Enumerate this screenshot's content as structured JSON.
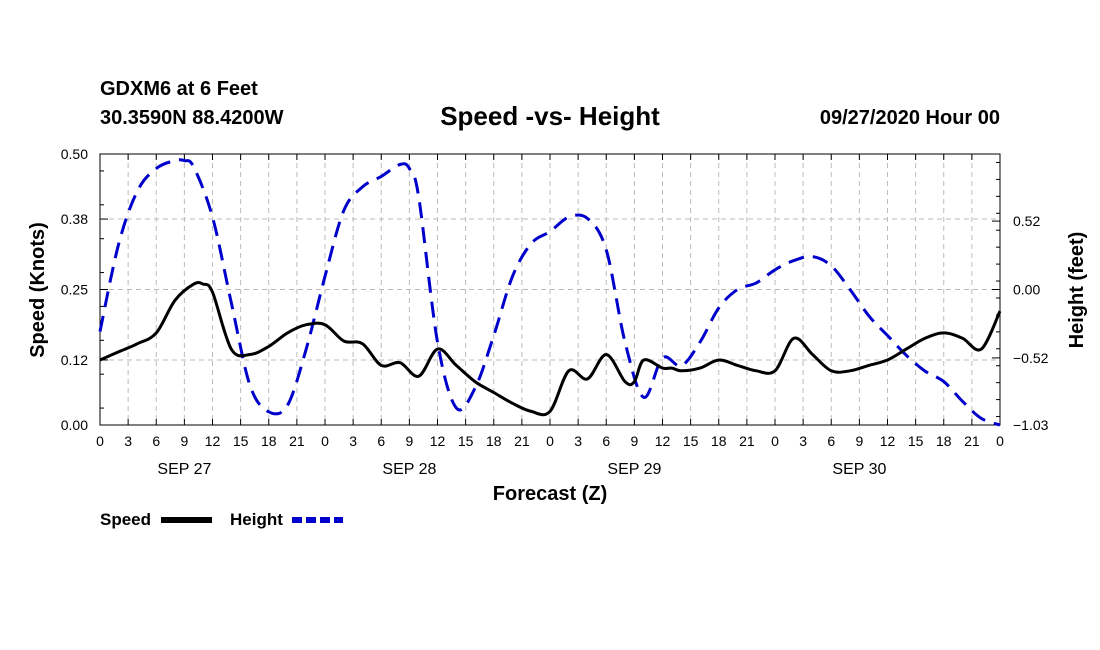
{
  "header": {
    "station": "GDXM6 at 6 Feet",
    "coords": "30.3590N 88.4200W",
    "title": "Speed -vs- Height",
    "date": "09/27/2020 Hour 00"
  },
  "colors": {
    "speed": "#000000",
    "height": "#0000cc",
    "grid": "#bbbbbb"
  },
  "chart_data": {
    "type": "line",
    "title": "Speed -vs- Height",
    "xlabel": "Forecast (Z)",
    "ylabel": "Speed (Knots)",
    "y2label": "Height (feet)",
    "x_range_hours": [
      0,
      96
    ],
    "x_tick_labels": [
      "0",
      "3",
      "6",
      "9",
      "12",
      "15",
      "18",
      "21",
      "0",
      "3",
      "6",
      "9",
      "12",
      "15",
      "18",
      "21",
      "0",
      "3",
      "6",
      "9",
      "12",
      "15",
      "18",
      "21",
      "0",
      "3",
      "6",
      "9",
      "12",
      "15",
      "18",
      "21",
      "0"
    ],
    "day_labels": [
      {
        "label": "SEP 27",
        "hour": 9
      },
      {
        "label": "SEP 28",
        "hour": 33
      },
      {
        "label": "SEP 29",
        "hour": 57
      },
      {
        "label": "SEP 30",
        "hour": 81
      }
    ],
    "ylim": [
      0,
      0.5
    ],
    "y_ticks": [
      "0.00",
      "0.12",
      "0.25",
      "0.38",
      "0.50"
    ],
    "y2lim": [
      -1.03,
      1.03
    ],
    "y2_ticks": [
      "-1.03",
      "-0.52",
      "0.00",
      "0.52"
    ],
    "series": [
      {
        "name": "Speed",
        "axis": "left",
        "style": "solid",
        "x": [
          0,
          2,
          4,
          6,
          8,
          10,
          11,
          12,
          14,
          16,
          18,
          20,
          22,
          24,
          26,
          28,
          30,
          32,
          34,
          36,
          38,
          40,
          42,
          44,
          46,
          48,
          50,
          52,
          54,
          56,
          57,
          58,
          60,
          61,
          62,
          64,
          66,
          68,
          70,
          72,
          74,
          76,
          78,
          80,
          82,
          84,
          86,
          88,
          90,
          92,
          94,
          96
        ],
        "y": [
          0.12,
          0.135,
          0.15,
          0.17,
          0.23,
          0.26,
          0.26,
          0.245,
          0.14,
          0.13,
          0.145,
          0.17,
          0.185,
          0.185,
          0.155,
          0.15,
          0.11,
          0.115,
          0.09,
          0.14,
          0.11,
          0.08,
          0.06,
          0.04,
          0.025,
          0.025,
          0.1,
          0.085,
          0.13,
          0.08,
          0.08,
          0.12,
          0.105,
          0.105,
          0.1,
          0.105,
          0.12,
          0.11,
          0.1,
          0.1,
          0.16,
          0.13,
          0.1,
          0.1,
          0.11,
          0.12,
          0.14,
          0.16,
          0.17,
          0.16,
          0.14,
          0.21
        ]
      },
      {
        "name": "Height",
        "axis": "right",
        "style": "dashed",
        "x": [
          0,
          2,
          4,
          6,
          8,
          9,
          10,
          12,
          14,
          16,
          18,
          20,
          22,
          24,
          26,
          28,
          30,
          32,
          33,
          34,
          36,
          38,
          40,
          42,
          44,
          46,
          48,
          50,
          52,
          54,
          56,
          58,
          60,
          62,
          64,
          66,
          68,
          70,
          72,
          74,
          76,
          78,
          80,
          82,
          84,
          86,
          88,
          90,
          92,
          94,
          96
        ],
        "y": [
          -0.32,
          0.35,
          0.75,
          0.92,
          0.98,
          0.98,
          0.93,
          0.55,
          -0.1,
          -0.73,
          -0.93,
          -0.88,
          -0.45,
          0.1,
          0.6,
          0.78,
          0.86,
          0.95,
          0.92,
          0.7,
          -0.4,
          -0.9,
          -0.75,
          -0.35,
          0.1,
          0.35,
          0.44,
          0.55,
          0.54,
          0.3,
          -0.4,
          -0.82,
          -0.52,
          -0.58,
          -0.4,
          -0.14,
          0.0,
          0.05,
          0.15,
          0.22,
          0.25,
          0.18,
          0.0,
          -0.2,
          -0.35,
          -0.5,
          -0.62,
          -0.7,
          -0.85,
          -0.98,
          -1.03
        ]
      }
    ],
    "legend": [
      "Speed",
      "Height"
    ]
  }
}
